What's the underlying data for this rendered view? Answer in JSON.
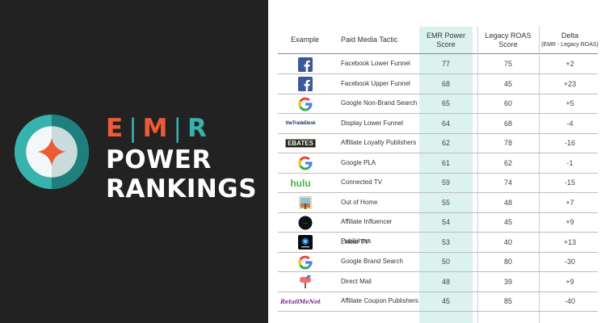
{
  "brand": {
    "line1": [
      "E",
      "M",
      "R"
    ],
    "line2": "POWER",
    "line3": "RANKINGS"
  },
  "colors": {
    "accent_orange": "#ef5a36",
    "accent_teal": "#38b2ad",
    "emr_column": "#dcf2ef"
  },
  "table": {
    "headers": {
      "example": "Example",
      "tactic": "Paid Media Tactic",
      "emr": [
        "EMR Power",
        "Score"
      ],
      "legacy": [
        "Legacy ROAS",
        "Score"
      ],
      "delta": "Delta",
      "delta_sub": "(EMR - Legacy ROAS)"
    },
    "rows": [
      {
        "logo": "facebook-icon",
        "tactic": "Facebook Lower Funnel",
        "emr": "77",
        "legacy": "75",
        "delta": "+2"
      },
      {
        "logo": "facebook-icon",
        "tactic": "Facebook Upper Funnel",
        "emr": "68",
        "legacy": "45",
        "delta": "+23"
      },
      {
        "logo": "google-icon",
        "tactic": "Google Non-Brand Search",
        "emr": "65",
        "legacy": "60",
        "delta": "+5"
      },
      {
        "logo": "thetradedesk-logo",
        "logo_text": "theTradeDesk",
        "tactic": "Display Lower Funnel",
        "emr": "64",
        "legacy": "68",
        "delta": "-4"
      },
      {
        "logo": "ebates-logo",
        "logo_text": "EBATES",
        "tactic": "Affiliate Loyalty Publishers",
        "emr": "62",
        "legacy": "78",
        "delta": "-16"
      },
      {
        "logo": "google-icon",
        "tactic": "Google PLA",
        "emr": "61",
        "legacy": "62",
        "delta": "-1"
      },
      {
        "logo": "hulu-logo",
        "logo_text": "hulu",
        "tactic": "Connected TV",
        "emr": "59",
        "legacy": "74",
        "delta": "-15"
      },
      {
        "logo": "billboard-icon",
        "tactic": "Out of Home",
        "emr": "55",
        "legacy": "48",
        "delta": "+7"
      },
      {
        "logo": "influencer-icon",
        "tactic": "Affiliate Influencer Publishers",
        "emr": "54",
        "legacy": "45",
        "delta": "+9"
      },
      {
        "logo": "directv-icon",
        "tactic": "Linear TV",
        "emr": "53",
        "legacy": "40",
        "delta": "+13"
      },
      {
        "logo": "google-icon",
        "tactic": "Google Brand Search",
        "emr": "50",
        "legacy": "80",
        "delta": "-30"
      },
      {
        "logo": "mailbox-icon",
        "tactic": "Direct Mail",
        "emr": "48",
        "legacy": "39",
        "delta": "+9"
      },
      {
        "logo": "retailmenot-logo",
        "logo_text": "RetailMeNot",
        "tactic": "Affiliate Coupon Publishers",
        "emr": "45",
        "legacy": "85",
        "delta": "-40"
      }
    ]
  }
}
